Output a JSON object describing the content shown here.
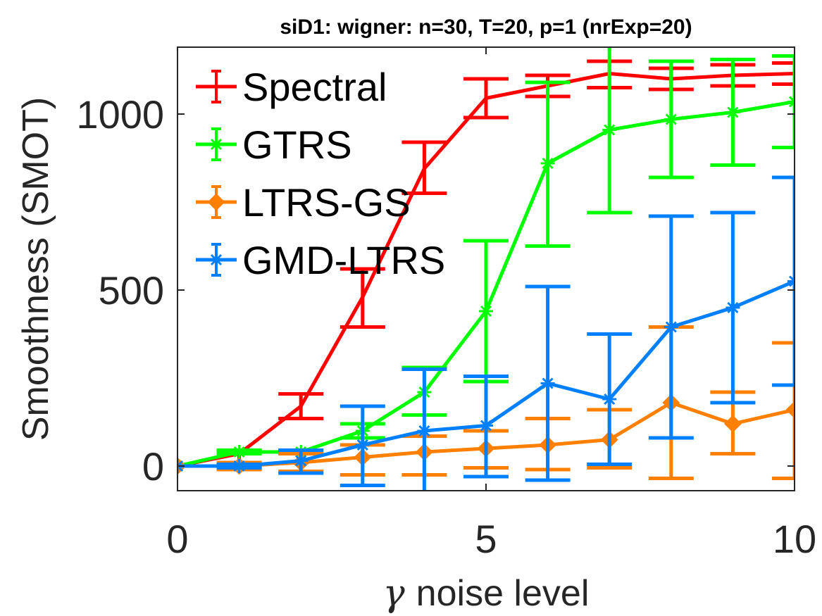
{
  "chart_data": {
    "type": "line",
    "title": "siD1: wigner: n=30, T=20, p=1 (nrExp=20)",
    "xlabel_symbol": "γ",
    "xlabel": "noise level",
    "ylabel": "Smoothness (SMOT)",
    "xlim": [
      0,
      10
    ],
    "ylim": [
      -70,
      1190
    ],
    "xticks": [
      "0",
      "5",
      "10"
    ],
    "yticks": [
      "0",
      "500",
      "1000"
    ],
    "legend_position": "top-left",
    "x": [
      0,
      1,
      2,
      3,
      4,
      5,
      6,
      7,
      8,
      9,
      10
    ],
    "series": [
      {
        "name": "Spectral",
        "color": "#ff0000",
        "marker": "none",
        "values": [
          0,
          35,
          170,
          480,
          845,
          1045,
          1080,
          1115,
          1100,
          1110,
          1115
        ],
        "err_low": [
          0,
          0,
          135,
          395,
          775,
          990,
          1050,
          1075,
          1070,
          1080,
          1085
        ],
        "err_high": [
          0,
          45,
          205,
          560,
          920,
          1100,
          1110,
          1150,
          1130,
          1140,
          1145
        ]
      },
      {
        "name": "GTRS",
        "color": "#00ff00",
        "marker": "star",
        "values": [
          0,
          40,
          40,
          100,
          210,
          440,
          860,
          955,
          985,
          1005,
          1035
        ],
        "err_low": [
          0,
          35,
          35,
          80,
          145,
          240,
          625,
          720,
          820,
          855,
          905
        ],
        "err_high": [
          0,
          45,
          45,
          120,
          280,
          640,
          1090,
          1195,
          1150,
          1155,
          1165
        ]
      },
      {
        "name": "LTRS-GS",
        "color": "#ff8000",
        "marker": "diamond",
        "values": [
          0,
          0,
          10,
          25,
          40,
          50,
          60,
          75,
          180,
          120,
          160
        ],
        "err_low": [
          0,
          -10,
          -15,
          -25,
          -25,
          -5,
          -10,
          -5,
          -35,
          35,
          -35
        ],
        "err_high": [
          0,
          10,
          35,
          60,
          85,
          100,
          135,
          160,
          395,
          210,
          350
        ]
      },
      {
        "name": "GMD-LTRS",
        "color": "#0080ff",
        "marker": "star",
        "values": [
          0,
          0,
          15,
          60,
          100,
          115,
          235,
          190,
          395,
          450,
          525
        ],
        "err_low": [
          0,
          -5,
          -20,
          -55,
          -75,
          -30,
          -40,
          5,
          80,
          180,
          230
        ],
        "err_high": [
          0,
          5,
          45,
          170,
          275,
          255,
          510,
          375,
          710,
          720,
          820
        ]
      }
    ]
  }
}
